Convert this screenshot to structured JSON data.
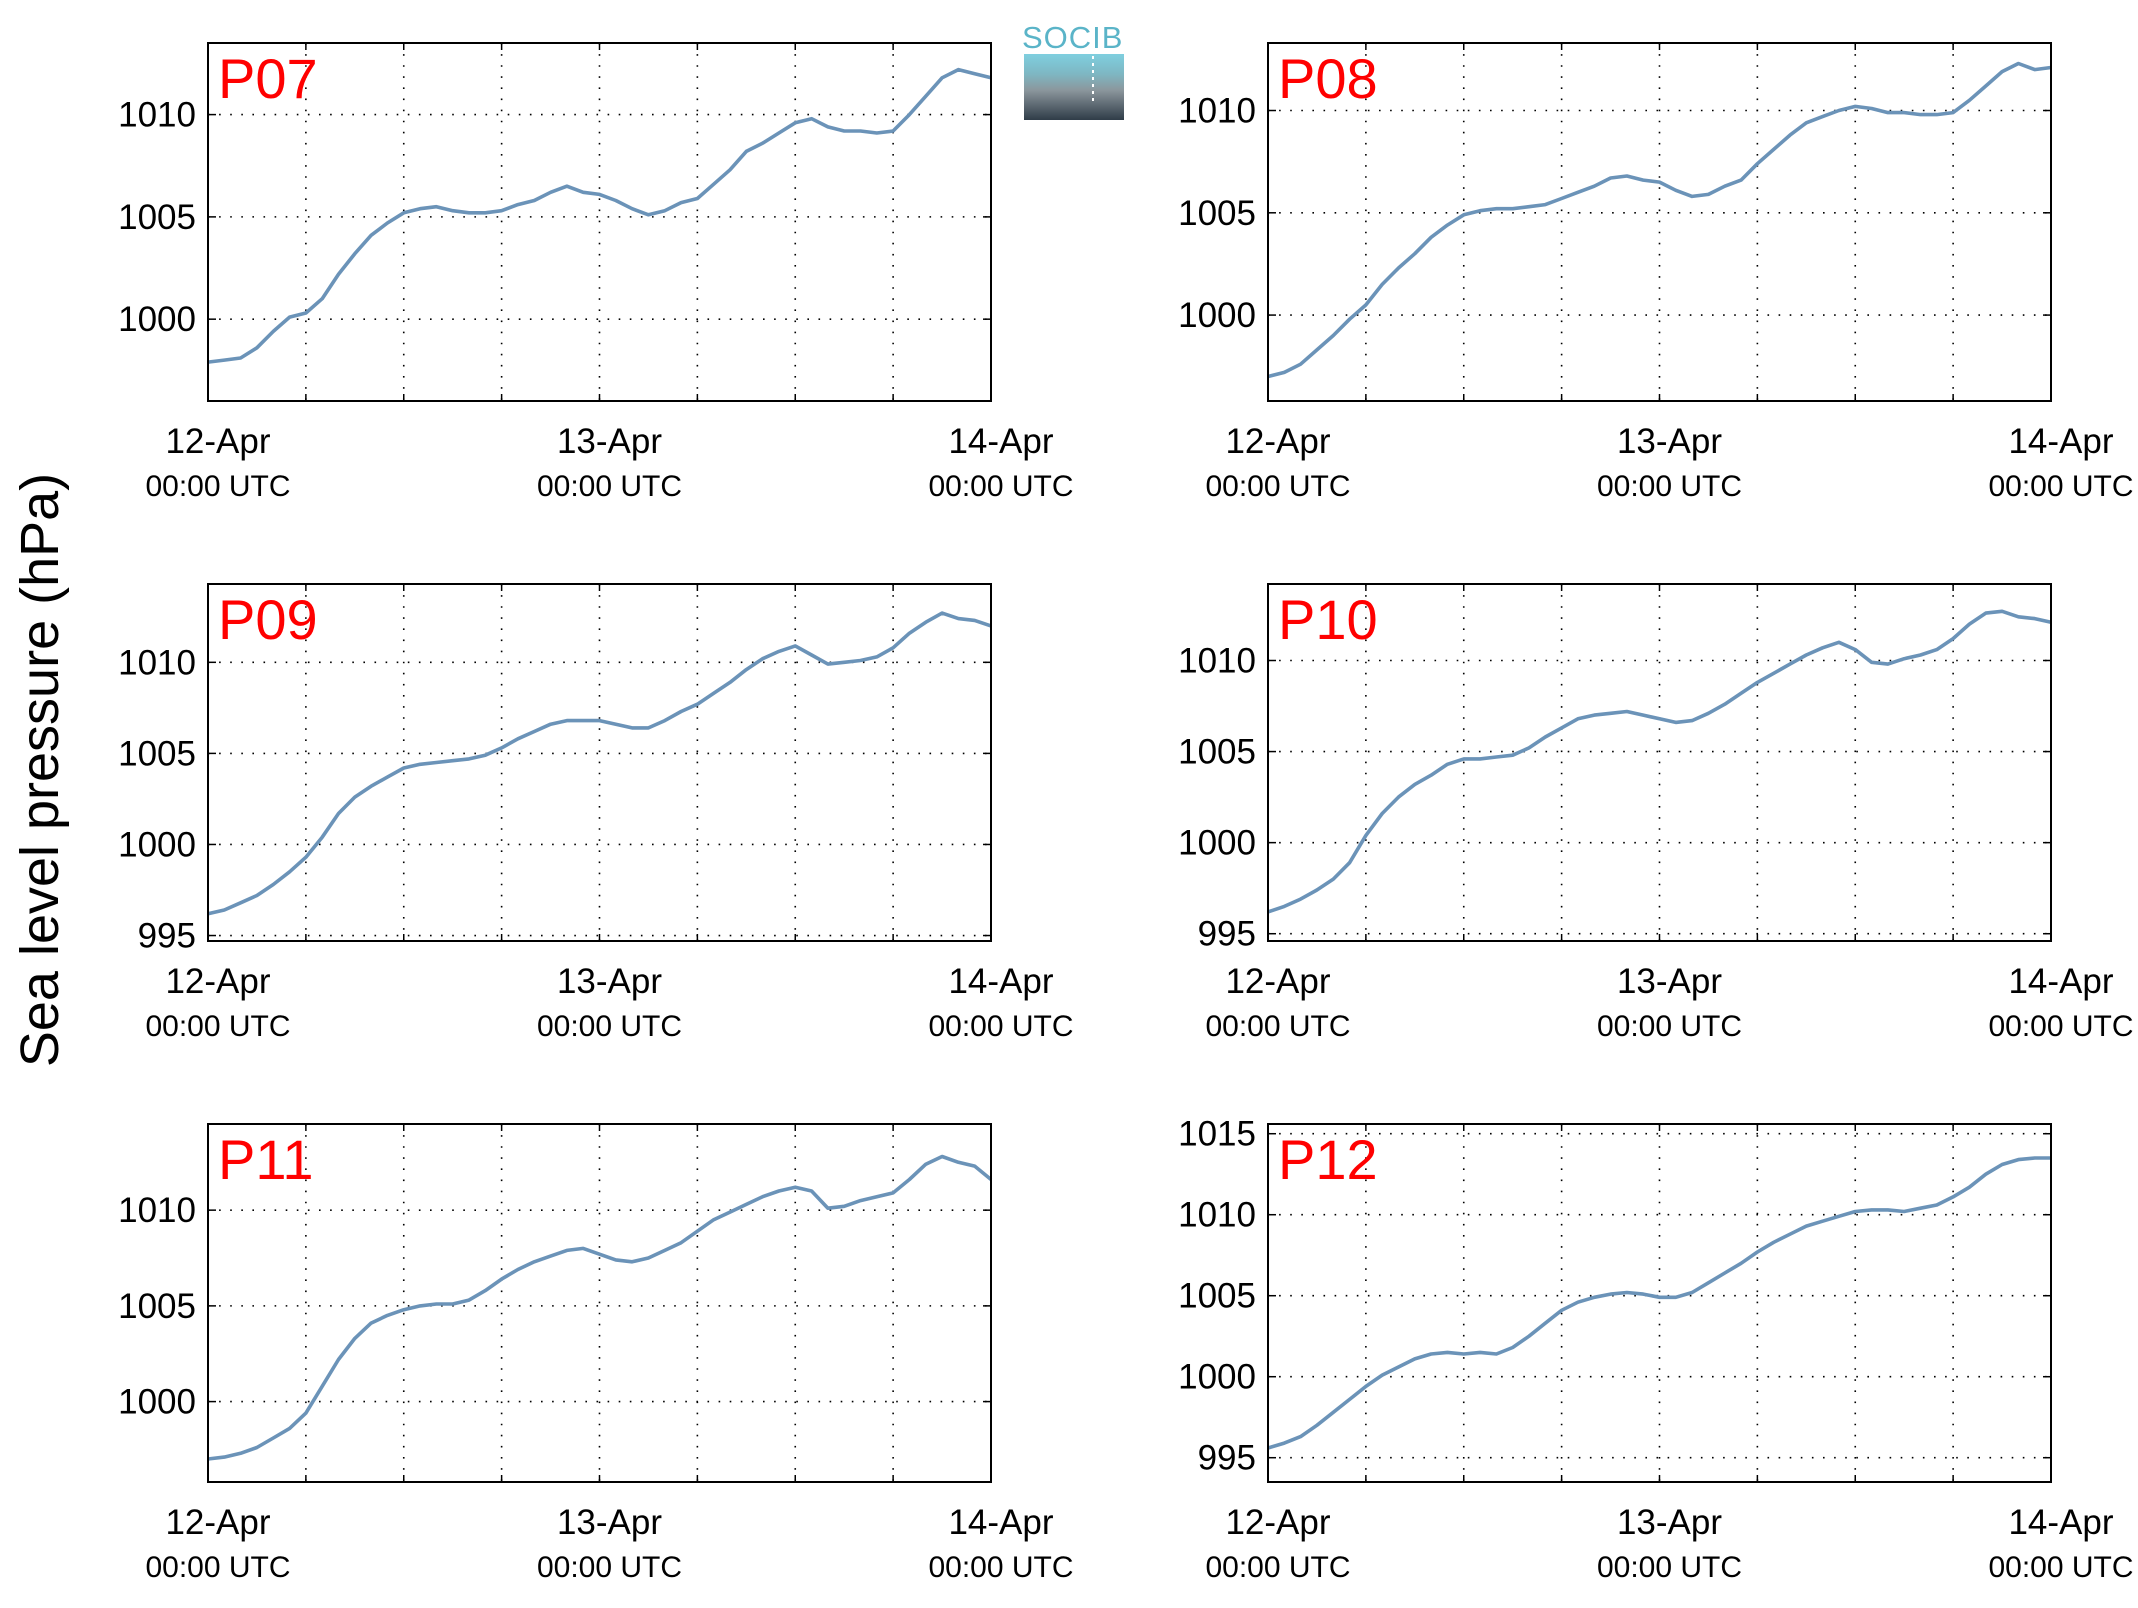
{
  "figure": {
    "ylabel": "Sea level pressure (hPa)",
    "logo_text": "SOCIB",
    "line_color": "#6b93b8",
    "label_color": "#ff0000"
  },
  "chart_data": [
    {
      "type": "line",
      "title": "P07",
      "x_ticks": [
        {
          "label": "12-Apr",
          "sublabel": "00:00 UTC"
        },
        {
          "label": "13-Apr",
          "sublabel": "00:00 UTC"
        },
        {
          "label": "14-Apr",
          "sublabel": "00:00 UTC"
        }
      ],
      "xlim": [
        0,
        48
      ],
      "ylim": [
        996,
        1013.5
      ],
      "yticks": [
        1000,
        1005,
        1010
      ],
      "grid": true,
      "series": [
        {
          "x": [
            0,
            1,
            2,
            3,
            4,
            5,
            6,
            7,
            8,
            9,
            10,
            11,
            12,
            13,
            14,
            15,
            16,
            17,
            18,
            19,
            20,
            21,
            22,
            23,
            24,
            25,
            26,
            27,
            28,
            29,
            30,
            31,
            32,
            33,
            34,
            35,
            36,
            37,
            38,
            39,
            40,
            41,
            42,
            43,
            44,
            45,
            46,
            47,
            48
          ],
          "values": [
            997.9,
            998.0,
            998.1,
            998.6,
            999.4,
            1000.1,
            1000.3,
            1001.0,
            1002.2,
            1003.2,
            1004.1,
            1004.7,
            1005.2,
            1005.4,
            1005.5,
            1005.3,
            1005.2,
            1005.2,
            1005.3,
            1005.6,
            1005.8,
            1006.2,
            1006.5,
            1006.2,
            1006.1,
            1005.8,
            1005.4,
            1005.1,
            1005.3,
            1005.7,
            1005.9,
            1006.6,
            1007.3,
            1008.2,
            1008.6,
            1009.1,
            1009.6,
            1009.8,
            1009.4,
            1009.2,
            1009.2,
            1009.1,
            1009.2,
            1010.0,
            1010.9,
            1011.8,
            1012.2,
            1012.0,
            1011.8
          ]
        }
      ]
    },
    {
      "type": "line",
      "title": "P08",
      "x_ticks": [
        {
          "label": "12-Apr",
          "sublabel": "00:00 UTC"
        },
        {
          "label": "13-Apr",
          "sublabel": "00:00 UTC"
        },
        {
          "label": "14-Apr",
          "sublabel": "00:00 UTC"
        }
      ],
      "xlim": [
        0,
        48
      ],
      "ylim": [
        995.8,
        1013.3
      ],
      "yticks": [
        1000,
        1005,
        1010
      ],
      "grid": true,
      "series": [
        {
          "x": [
            0,
            1,
            2,
            3,
            4,
            5,
            6,
            7,
            8,
            9,
            10,
            11,
            12,
            13,
            14,
            15,
            16,
            17,
            18,
            19,
            20,
            21,
            22,
            23,
            24,
            25,
            26,
            27,
            28,
            29,
            30,
            31,
            32,
            33,
            34,
            35,
            36,
            37,
            38,
            39,
            40,
            41,
            42,
            43,
            44,
            45,
            46,
            47,
            48
          ],
          "values": [
            997.0,
            997.2,
            997.6,
            998.3,
            999.0,
            999.8,
            1000.5,
            1001.5,
            1002.3,
            1003.0,
            1003.8,
            1004.4,
            1004.9,
            1005.1,
            1005.2,
            1005.2,
            1005.3,
            1005.4,
            1005.7,
            1006.0,
            1006.3,
            1006.7,
            1006.8,
            1006.6,
            1006.5,
            1006.1,
            1005.8,
            1005.9,
            1006.3,
            1006.6,
            1007.4,
            1008.1,
            1008.8,
            1009.4,
            1009.7,
            1010.0,
            1010.2,
            1010.1,
            1009.9,
            1009.9,
            1009.8,
            1009.8,
            1009.9,
            1010.5,
            1011.2,
            1011.9,
            1012.3,
            1012.0,
            1012.1
          ]
        }
      ]
    },
    {
      "type": "line",
      "title": "P09",
      "x_ticks": [
        {
          "label": "12-Apr",
          "sublabel": "00:00 UTC"
        },
        {
          "label": "13-Apr",
          "sublabel": "00:00 UTC"
        },
        {
          "label": "14-Apr",
          "sublabel": "00:00 UTC"
        }
      ],
      "xlim": [
        0,
        48
      ],
      "ylim": [
        994.7,
        1014.3
      ],
      "yticks": [
        995,
        1000,
        1005,
        1010
      ],
      "grid": true,
      "series": [
        {
          "x": [
            0,
            1,
            2,
            3,
            4,
            5,
            6,
            7,
            8,
            9,
            10,
            11,
            12,
            13,
            14,
            15,
            16,
            17,
            18,
            19,
            20,
            21,
            22,
            23,
            24,
            25,
            26,
            27,
            28,
            29,
            30,
            31,
            32,
            33,
            34,
            35,
            36,
            37,
            38,
            39,
            40,
            41,
            42,
            43,
            44,
            45,
            46,
            47,
            48
          ],
          "values": [
            996.2,
            996.4,
            996.8,
            997.2,
            997.8,
            998.5,
            999.3,
            1000.4,
            1001.7,
            1002.6,
            1003.2,
            1003.7,
            1004.2,
            1004.4,
            1004.5,
            1004.6,
            1004.7,
            1004.9,
            1005.3,
            1005.8,
            1006.2,
            1006.6,
            1006.8,
            1006.8,
            1006.8,
            1006.6,
            1006.4,
            1006.4,
            1006.8,
            1007.3,
            1007.7,
            1008.3,
            1008.9,
            1009.6,
            1010.2,
            1010.6,
            1010.9,
            1010.4,
            1009.9,
            1010.0,
            1010.1,
            1010.3,
            1010.8,
            1011.6,
            1012.2,
            1012.7,
            1012.4,
            1012.3,
            1012.0
          ]
        }
      ]
    },
    {
      "type": "line",
      "title": "P10",
      "x_ticks": [
        {
          "label": "12-Apr",
          "sublabel": "00:00 UTC"
        },
        {
          "label": "13-Apr",
          "sublabel": "00:00 UTC"
        },
        {
          "label": "14-Apr",
          "sublabel": "00:00 UTC"
        }
      ],
      "xlim": [
        0,
        48
      ],
      "ylim": [
        994.6,
        1014.2
      ],
      "yticks": [
        995,
        1000,
        1005,
        1010
      ],
      "grid": true,
      "series": [
        {
          "x": [
            0,
            1,
            2,
            3,
            4,
            5,
            6,
            7,
            8,
            9,
            10,
            11,
            12,
            13,
            14,
            15,
            16,
            17,
            18,
            19,
            20,
            21,
            22,
            23,
            24,
            25,
            26,
            27,
            28,
            29,
            30,
            31,
            32,
            33,
            34,
            35,
            36,
            37,
            38,
            39,
            40,
            41,
            42,
            43,
            44,
            45,
            46,
            47,
            48
          ],
          "values": [
            996.2,
            996.5,
            996.9,
            997.4,
            998.0,
            998.9,
            1000.4,
            1001.6,
            1002.5,
            1003.2,
            1003.7,
            1004.3,
            1004.6,
            1004.6,
            1004.7,
            1004.8,
            1005.2,
            1005.8,
            1006.3,
            1006.8,
            1007.0,
            1007.1,
            1007.2,
            1007.0,
            1006.8,
            1006.6,
            1006.7,
            1007.1,
            1007.6,
            1008.2,
            1008.8,
            1009.3,
            1009.8,
            1010.3,
            1010.7,
            1011.0,
            1010.6,
            1009.9,
            1009.8,
            1010.1,
            1010.3,
            1010.6,
            1011.2,
            1012.0,
            1012.6,
            1012.7,
            1012.4,
            1012.3,
            1012.1
          ]
        }
      ]
    },
    {
      "type": "line",
      "title": "P11",
      "x_ticks": [
        {
          "label": "12-Apr",
          "sublabel": "00:00 UTC"
        },
        {
          "label": "13-Apr",
          "sublabel": "00:00 UTC"
        },
        {
          "label": "14-Apr",
          "sublabel": "00:00 UTC"
        }
      ],
      "xlim": [
        0,
        48
      ],
      "ylim": [
        995.8,
        1014.5
      ],
      "yticks": [
        1000,
        1005,
        1010
      ],
      "grid": true,
      "series": [
        {
          "x": [
            0,
            1,
            2,
            3,
            4,
            5,
            6,
            7,
            8,
            9,
            10,
            11,
            12,
            13,
            14,
            15,
            16,
            17,
            18,
            19,
            20,
            21,
            22,
            23,
            24,
            25,
            26,
            27,
            28,
            29,
            30,
            31,
            32,
            33,
            34,
            35,
            36,
            37,
            38,
            39,
            40,
            41,
            42,
            43,
            44,
            45,
            46,
            47,
            48
          ],
          "values": [
            997.0,
            997.1,
            997.3,
            997.6,
            998.1,
            998.6,
            999.4,
            1000.8,
            1002.2,
            1003.3,
            1004.1,
            1004.5,
            1004.8,
            1005.0,
            1005.1,
            1005.1,
            1005.3,
            1005.8,
            1006.4,
            1006.9,
            1007.3,
            1007.6,
            1007.9,
            1008.0,
            1007.7,
            1007.4,
            1007.3,
            1007.5,
            1007.9,
            1008.3,
            1008.9,
            1009.5,
            1009.9,
            1010.3,
            1010.7,
            1011.0,
            1011.2,
            1011.0,
            1010.1,
            1010.2,
            1010.5,
            1010.7,
            1010.9,
            1011.6,
            1012.4,
            1012.8,
            1012.5,
            1012.3,
            1011.6
          ]
        }
      ]
    },
    {
      "type": "line",
      "title": "P12",
      "x_ticks": [
        {
          "label": "12-Apr",
          "sublabel": "00:00 UTC"
        },
        {
          "label": "13-Apr",
          "sublabel": "00:00 UTC"
        },
        {
          "label": "14-Apr",
          "sublabel": "00:00 UTC"
        }
      ],
      "xlim": [
        0,
        48
      ],
      "ylim": [
        993.5,
        1015.6
      ],
      "yticks": [
        995,
        1000,
        1005,
        1010,
        1015
      ],
      "grid": true,
      "series": [
        {
          "x": [
            0,
            1,
            2,
            3,
            4,
            5,
            6,
            7,
            8,
            9,
            10,
            11,
            12,
            13,
            14,
            15,
            16,
            17,
            18,
            19,
            20,
            21,
            22,
            23,
            24,
            25,
            26,
            27,
            28,
            29,
            30,
            31,
            32,
            33,
            34,
            35,
            36,
            37,
            38,
            39,
            40,
            41,
            42,
            43,
            44,
            45,
            46,
            47,
            48
          ],
          "values": [
            995.6,
            995.9,
            996.3,
            997.0,
            997.8,
            998.6,
            999.4,
            1000.1,
            1000.6,
            1001.1,
            1001.4,
            1001.5,
            1001.4,
            1001.5,
            1001.4,
            1001.8,
            1002.5,
            1003.3,
            1004.1,
            1004.6,
            1004.9,
            1005.1,
            1005.2,
            1005.1,
            1004.9,
            1004.9,
            1005.2,
            1005.8,
            1006.4,
            1007.0,
            1007.7,
            1008.3,
            1008.8,
            1009.3,
            1009.6,
            1009.9,
            1010.2,
            1010.3,
            1010.3,
            1010.2,
            1010.4,
            1010.6,
            1011.1,
            1011.7,
            1012.5,
            1013.1,
            1013.4,
            1013.5,
            1013.5
          ]
        }
      ]
    }
  ]
}
